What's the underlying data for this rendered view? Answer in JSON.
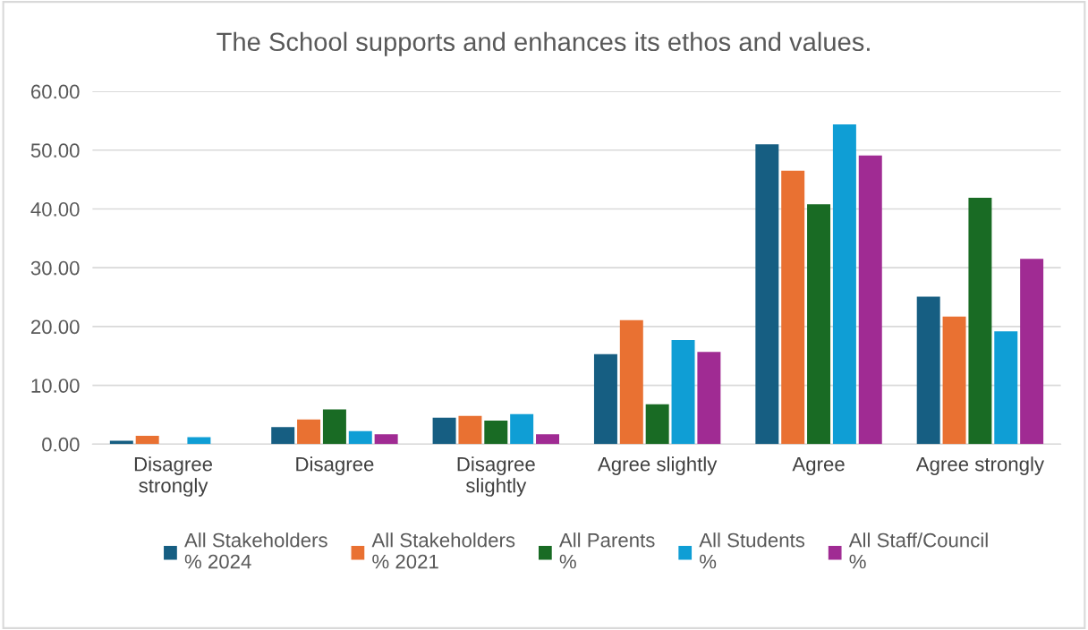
{
  "chart_data": {
    "type": "bar",
    "title": "The School supports and enhances its ethos and values.",
    "categories": [
      "Disagree\nstrongly",
      "Disagree",
      "Disagree\nslightly",
      "Agree slightly",
      "Agree",
      "Agree strongly"
    ],
    "series": [
      {
        "name": "All Stakeholders\n% 2024",
        "color": "#165e82",
        "values": [
          0.6,
          2.9,
          4.5,
          15.3,
          51.0,
          25.1
        ]
      },
      {
        "name": "All Stakeholders\n% 2021",
        "color": "#e97132",
        "values": [
          1.4,
          4.2,
          4.8,
          21.1,
          46.5,
          21.7
        ]
      },
      {
        "name": "All Parents\n%",
        "color": "#196b24",
        "values": [
          0,
          5.9,
          4.0,
          6.8,
          40.8,
          41.9
        ]
      },
      {
        "name": "All Students\n%",
        "color": "#0f9ed5",
        "values": [
          1.2,
          2.2,
          5.1,
          17.7,
          54.4,
          19.2
        ]
      },
      {
        "name": "All Staff/Council\n%",
        "color": "#a02b93",
        "values": [
          0,
          1.7,
          1.7,
          15.7,
          49.1,
          31.5
        ]
      }
    ],
    "ylim": [
      0,
      60
    ],
    "yticks": [
      {
        "value": 0,
        "label": "0.00"
      },
      {
        "value": 10,
        "label": "10.00"
      },
      {
        "value": 20,
        "label": "20.00"
      },
      {
        "value": 30,
        "label": "30.00"
      },
      {
        "value": 40,
        "label": "40.00"
      },
      {
        "value": 50,
        "label": "50.00"
      },
      {
        "value": 60,
        "label": "60.00"
      }
    ],
    "grid": "y",
    "legend": "bottom"
  }
}
